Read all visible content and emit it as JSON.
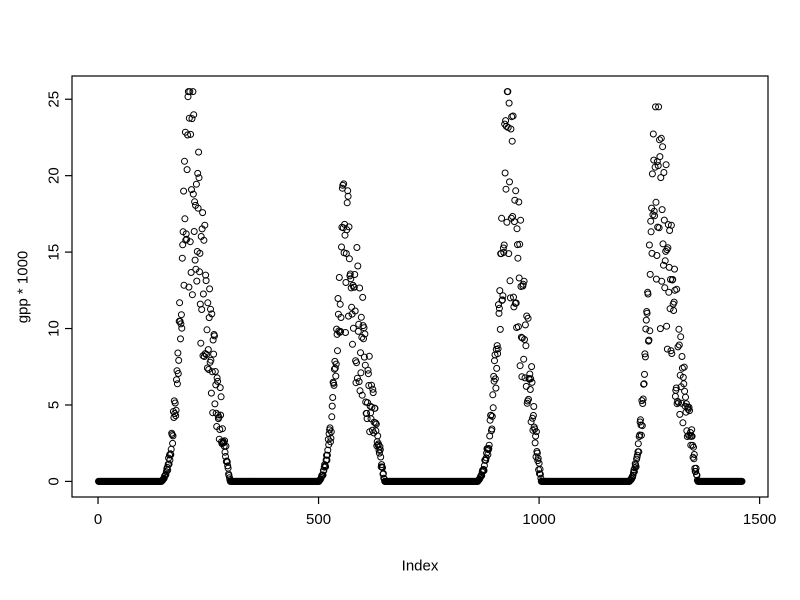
{
  "figure": {
    "background": "#ffffff",
    "foreground": "#000000"
  },
  "chart_data": {
    "type": "scatter",
    "title": "",
    "xlabel": "Index",
    "ylabel": "gpp * 1000",
    "marker": "open-circle",
    "marker_radius_px": 3,
    "grid": false,
    "legend": "none",
    "xlim": [
      -59,
      1519
    ],
    "ylim": [
      -1.02,
      26.52
    ],
    "x_ticks": [
      0,
      500,
      1000,
      1500
    ],
    "y_ticks": [
      0,
      5,
      10,
      15,
      20,
      25
    ],
    "n_points": 1460,
    "pattern": {
      "description": "Seasonal GPP time series: value is 0 along the baseline between growing seasons; four annual peaks with a steep noisy rise, a maximum, and a longer noisy decline back to 0.",
      "baseline_value": 0,
      "seed": 42,
      "rise_exponent": 2.5,
      "fall_exponent": 1.1,
      "rise_noise": [
        0.72,
        1.22
      ],
      "fall_noise": [
        0.45,
        1.15
      ],
      "peaks": [
        {
          "start": 140,
          "center": 205,
          "end": 300,
          "amplitude": 25.5
        },
        {
          "start": 495,
          "center": 560,
          "end": 650,
          "amplitude": 20.4
        },
        {
          "start": 855,
          "center": 930,
          "end": 1005,
          "amplitude": 25.5
        },
        {
          "start": 1200,
          "center": 1265,
          "end": 1360,
          "amplitude": 24.5
        }
      ]
    }
  }
}
